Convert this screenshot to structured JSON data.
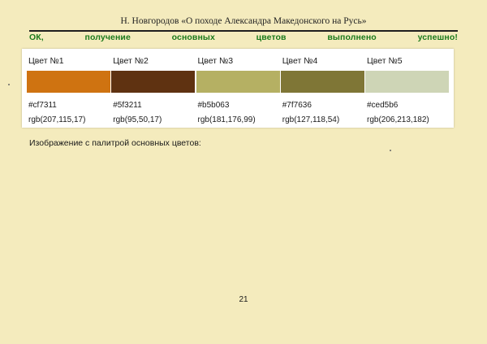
{
  "header": {
    "title": "Н. Новгородов «О походе Александра Македонского на Русь»"
  },
  "status": {
    "words": [
      "ОК,",
      "получение",
      "основных",
      "цветов",
      "выполнено",
      "успешно!"
    ],
    "color": "#1b7a1b"
  },
  "palette": {
    "swatches": [
      {
        "label": "Цвет №1",
        "hex": "#cf7311",
        "rgb": "rgb(207,115,17)"
      },
      {
        "label": "Цвет №2",
        "hex": "#5f3211",
        "rgb": "rgb(95,50,17)"
      },
      {
        "label": "Цвет №3",
        "hex": "#b5b063",
        "rgb": "rgb(181,176,99)"
      },
      {
        "label": "Цвет №4",
        "hex": "#7f7636",
        "rgb": "rgb(127,118,54)"
      },
      {
        "label": "Цвет №5",
        "hex": "#ced5b6",
        "rgb": "rgb(206,213,182)"
      }
    ]
  },
  "caption": "Изображение с палитрой основных цветов:",
  "page_number": "21",
  "colors": {
    "page_background": "#f4ebbd",
    "panel_background": "#ffffff"
  }
}
